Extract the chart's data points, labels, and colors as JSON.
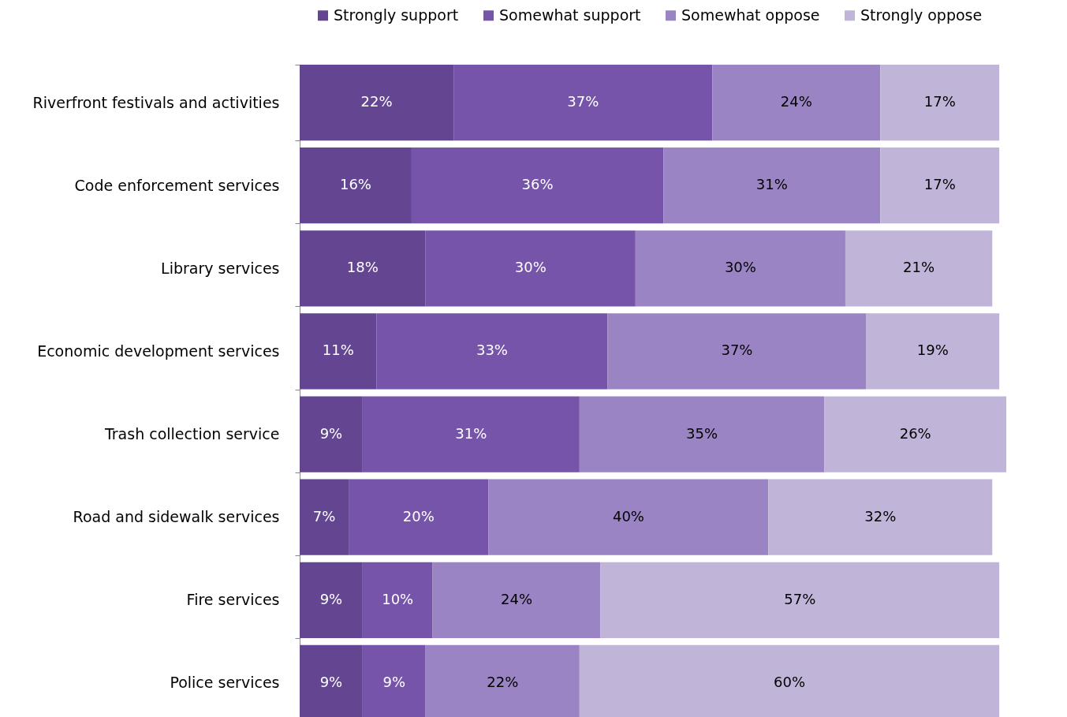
{
  "chart_data": {
    "type": "bar",
    "orientation": "horizontal",
    "stacked": true,
    "legend": "top right",
    "categories": [
      "Riverfront festivals and activities",
      "Code enforcement services",
      "Library services",
      "Economic development services",
      "Trash collection service",
      "Road and sidewalk services",
      "Fire services",
      "Police services"
    ],
    "series": [
      {
        "name": "Strongly support",
        "color": "#634591",
        "values": [
          22,
          16,
          18,
          11,
          9,
          7,
          9,
          9
        ],
        "value_labels": [
          "22%",
          "16%",
          "18%",
          "11%",
          "9%",
          "7%",
          "9%",
          "9%"
        ]
      },
      {
        "name": "Somewhat support",
        "color": "#7654a9",
        "values": [
          37,
          36,
          30,
          33,
          31,
          20,
          10,
          9
        ],
        "value_labels": [
          "37%",
          "36%",
          "30%",
          "33%",
          "31%",
          "20%",
          "10%",
          "9%"
        ]
      },
      {
        "name": "Somewhat oppose",
        "color": "#9a84c4",
        "values": [
          24,
          31,
          30,
          37,
          35,
          40,
          24,
          22
        ],
        "value_labels": [
          "24%",
          "31%",
          "30%",
          "37%",
          "35%",
          "40%",
          "24%",
          "22%"
        ]
      },
      {
        "name": "Strongly oppose",
        "color": "#c0b5d9",
        "values": [
          17,
          17,
          21,
          19,
          26,
          32,
          57,
          60
        ],
        "value_labels": [
          "17%",
          "17%",
          "21%",
          "19%",
          "26%",
          "32%",
          "57%",
          "60%"
        ]
      }
    ]
  }
}
